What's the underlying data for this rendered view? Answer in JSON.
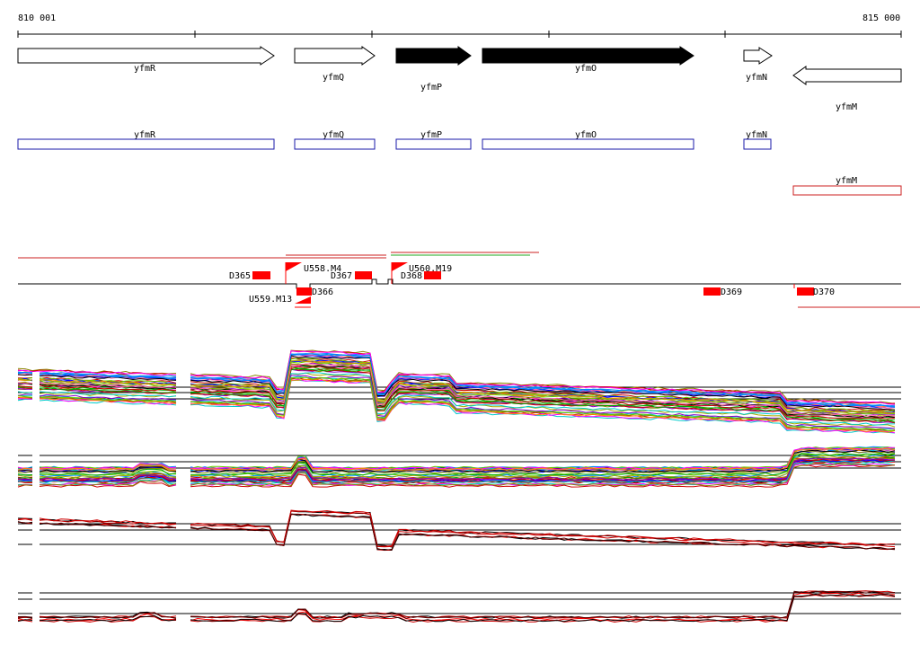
{
  "axis": {
    "start_label": "810 001",
    "end_label": "815 000"
  },
  "genes_strand": [
    {
      "name": "yfmR",
      "direction": "forward",
      "fill": "#ffffff"
    },
    {
      "name": "yfmQ",
      "direction": "forward",
      "fill": "#ffffff"
    },
    {
      "name": "yfmP",
      "direction": "forward",
      "fill": "#000000"
    },
    {
      "name": "yfmO",
      "direction": "forward",
      "fill": "#000000"
    },
    {
      "name": "yfmN",
      "direction": "forward",
      "fill": "#ffffff"
    },
    {
      "name": "yfmM",
      "direction": "reverse",
      "fill": "#ffffff"
    }
  ],
  "genes_boxes": [
    {
      "name": "yfmR",
      "color": "#1a1aaa"
    },
    {
      "name": "yfmQ",
      "color": "#1a1aaa"
    },
    {
      "name": "yfmP",
      "color": "#1a1aaa"
    },
    {
      "name": "yfmO",
      "color": "#1a1aaa"
    },
    {
      "name": "yfmN",
      "color": "#1a1aaa"
    },
    {
      "name": "yfmM",
      "color": "#cc2222"
    }
  ],
  "features": [
    {
      "label": "D365"
    },
    {
      "label": "U558.M4"
    },
    {
      "label": "D367"
    },
    {
      "label": "U560.M19"
    },
    {
      "label": "D368"
    },
    {
      "label": "D366"
    },
    {
      "label": "U559.M13"
    },
    {
      "label": "D369"
    },
    {
      "label": "D370"
    }
  ],
  "colors": {
    "feature": "#ff0000",
    "trace_palette": [
      "#ff00ff",
      "#00aa00",
      "#0000ff",
      "#ff8800",
      "#00cccc",
      "#cc0000",
      "#888800",
      "#8800cc",
      "#ff66aa",
      "#66cc00",
      "#0088ff",
      "#aaaa00"
    ]
  }
}
